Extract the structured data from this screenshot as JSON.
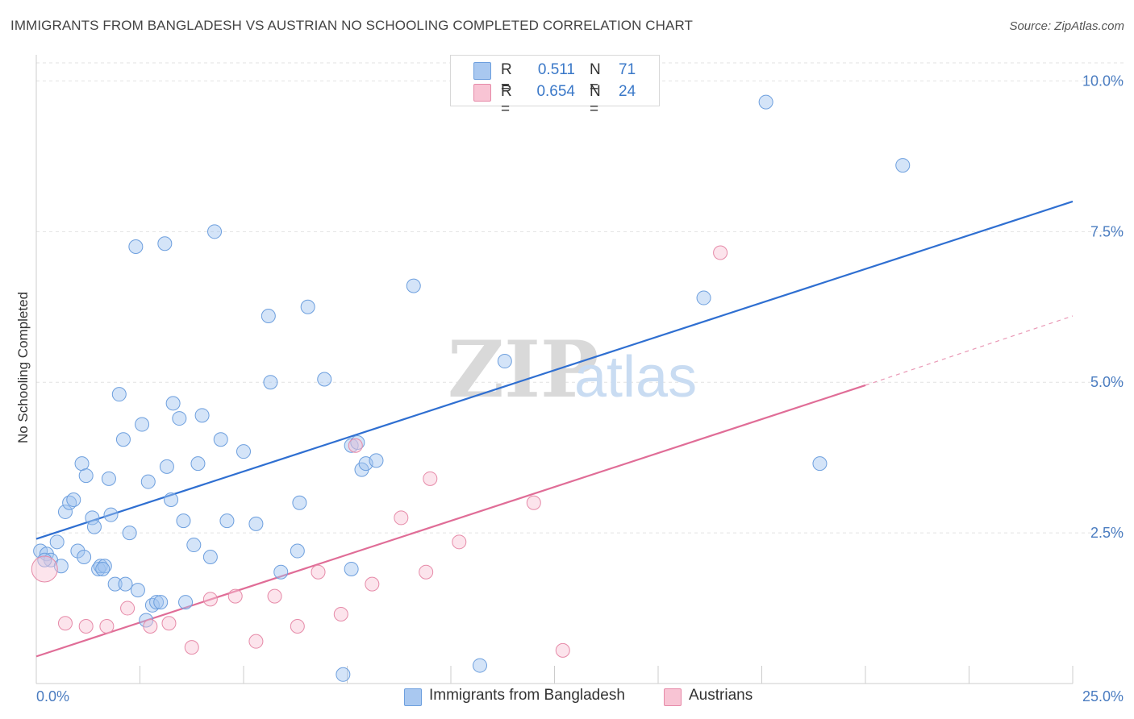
{
  "title": "IMMIGRANTS FROM BANGLADESH VS AUSTRIAN NO SCHOOLING COMPLETED CORRELATION CHART",
  "source": "Source: ZipAtlas.com",
  "watermark": {
    "zip": "ZIP",
    "atlas": "atlas"
  },
  "legend": {
    "rows": [
      {
        "r_label": "R =",
        "r_value": "0.511",
        "n_label": "N =",
        "n_value": "71",
        "color": "#a9c8f0",
        "border": "#6d9fde"
      },
      {
        "r_label": "R =",
        "r_value": "0.654",
        "n_label": "N =",
        "n_value": "24",
        "color": "#f8c4d4",
        "border": "#e68aa8"
      }
    ]
  },
  "bottom_legend": [
    {
      "label": "Immigrants from Bangladesh",
      "color": "#a9c8f0",
      "border": "#6d9fde"
    },
    {
      "label": "Austrians",
      "color": "#f8c4d4",
      "border": "#e68aa8"
    }
  ],
  "chart_data": {
    "type": "scatter",
    "title": "IMMIGRANTS FROM BANGLADESH VS AUSTRIAN NO SCHOOLING COMPLETED CORRELATION CHART",
    "xlabel": "",
    "ylabel": "No Schooling Completed",
    "xlim": [
      0,
      25
    ],
    "ylim": [
      0,
      10.3
    ],
    "x_tick_labels": {
      "left": "0.0%",
      "right": "25.0%"
    },
    "y_ticks": [
      {
        "value": 2.5,
        "label": "2.5%"
      },
      {
        "value": 5.0,
        "label": "5.0%"
      },
      {
        "value": 7.5,
        "label": "7.5%"
      },
      {
        "value": 10.0,
        "label": "10.0%"
      }
    ],
    "grid": "horizontal dashed",
    "legend_position": "top-center",
    "series": [
      {
        "name": "Immigrants from Bangladesh",
        "color": "#6d9fde",
        "fill": "rgba(160,195,240,0.45)",
        "trend": {
          "x": [
            0,
            25
          ],
          "y": [
            2.4,
            8.0
          ],
          "color": "#2f6fd1"
        },
        "points": [
          [
            0.1,
            2.2
          ],
          [
            0.25,
            2.15
          ],
          [
            0.35,
            2.05
          ],
          [
            0.5,
            2.35
          ],
          [
            0.6,
            1.95
          ],
          [
            0.7,
            2.85
          ],
          [
            0.8,
            3.0
          ],
          [
            0.9,
            3.05
          ],
          [
            1.0,
            2.2
          ],
          [
            1.1,
            3.65
          ],
          [
            1.15,
            2.1
          ],
          [
            1.2,
            3.45
          ],
          [
            1.35,
            2.75
          ],
          [
            1.4,
            2.6
          ],
          [
            1.5,
            1.9
          ],
          [
            1.55,
            1.95
          ],
          [
            1.65,
            1.95
          ],
          [
            1.75,
            3.4
          ],
          [
            1.8,
            2.8
          ],
          [
            1.9,
            1.65
          ],
          [
            2.0,
            4.8
          ],
          [
            2.1,
            4.05
          ],
          [
            2.15,
            1.65
          ],
          [
            2.25,
            2.5
          ],
          [
            2.4,
            7.25
          ],
          [
            2.45,
            1.55
          ],
          [
            2.55,
            4.3
          ],
          [
            2.65,
            1.05
          ],
          [
            2.7,
            3.35
          ],
          [
            2.8,
            1.3
          ],
          [
            2.9,
            1.35
          ],
          [
            3.0,
            1.35
          ],
          [
            3.1,
            7.3
          ],
          [
            3.15,
            3.6
          ],
          [
            3.25,
            3.05
          ],
          [
            3.3,
            4.65
          ],
          [
            3.45,
            4.4
          ],
          [
            3.55,
            2.7
          ],
          [
            3.6,
            1.35
          ],
          [
            3.8,
            2.3
          ],
          [
            3.9,
            3.65
          ],
          [
            4.0,
            4.45
          ],
          [
            4.2,
            2.1
          ],
          [
            4.3,
            7.5
          ],
          [
            4.45,
            4.05
          ],
          [
            4.6,
            2.7
          ],
          [
            5.0,
            3.85
          ],
          [
            5.3,
            2.65
          ],
          [
            5.6,
            6.1
          ],
          [
            5.65,
            5.0
          ],
          [
            5.9,
            1.85
          ],
          [
            6.3,
            2.2
          ],
          [
            6.35,
            3.0
          ],
          [
            6.55,
            6.25
          ],
          [
            6.95,
            5.05
          ],
          [
            7.4,
            0.15
          ],
          [
            7.6,
            3.95
          ],
          [
            7.75,
            4.0
          ],
          [
            7.85,
            3.55
          ],
          [
            7.95,
            3.65
          ],
          [
            7.6,
            1.9
          ],
          [
            8.2,
            3.7
          ],
          [
            9.1,
            6.6
          ],
          [
            10.7,
            0.3
          ],
          [
            11.3,
            5.35
          ],
          [
            16.1,
            6.4
          ],
          [
            17.6,
            9.65
          ],
          [
            18.9,
            3.65
          ],
          [
            20.9,
            8.6
          ],
          [
            0.2,
            2.05
          ],
          [
            1.6,
            1.9
          ]
        ]
      },
      {
        "name": "Austrians",
        "color": "#e68aa8",
        "fill": "rgba(248,196,212,0.45)",
        "trend": {
          "x": [
            0,
            20
          ],
          "y": [
            0.45,
            4.95
          ],
          "color": "#e06d97"
        },
        "trend_extension": {
          "x": [
            20,
            25
          ],
          "y": [
            4.95,
            6.1
          ]
        },
        "points": [
          [
            0.2,
            1.9
          ],
          [
            0.7,
            1.0
          ],
          [
            1.2,
            0.95
          ],
          [
            1.7,
            0.95
          ],
          [
            2.2,
            1.25
          ],
          [
            2.75,
            0.95
          ],
          [
            3.2,
            1.0
          ],
          [
            3.75,
            0.6
          ],
          [
            4.2,
            1.4
          ],
          [
            4.8,
            1.45
          ],
          [
            5.3,
            0.7
          ],
          [
            5.75,
            1.45
          ],
          [
            6.3,
            0.95
          ],
          [
            6.8,
            1.85
          ],
          [
            7.35,
            1.15
          ],
          [
            7.7,
            3.95
          ],
          [
            8.1,
            1.65
          ],
          [
            8.8,
            2.75
          ],
          [
            9.4,
            1.85
          ],
          [
            9.5,
            3.4
          ],
          [
            10.2,
            2.35
          ],
          [
            12.0,
            3.0
          ],
          [
            12.7,
            0.55
          ],
          [
            16.5,
            7.15
          ]
        ]
      }
    ]
  }
}
